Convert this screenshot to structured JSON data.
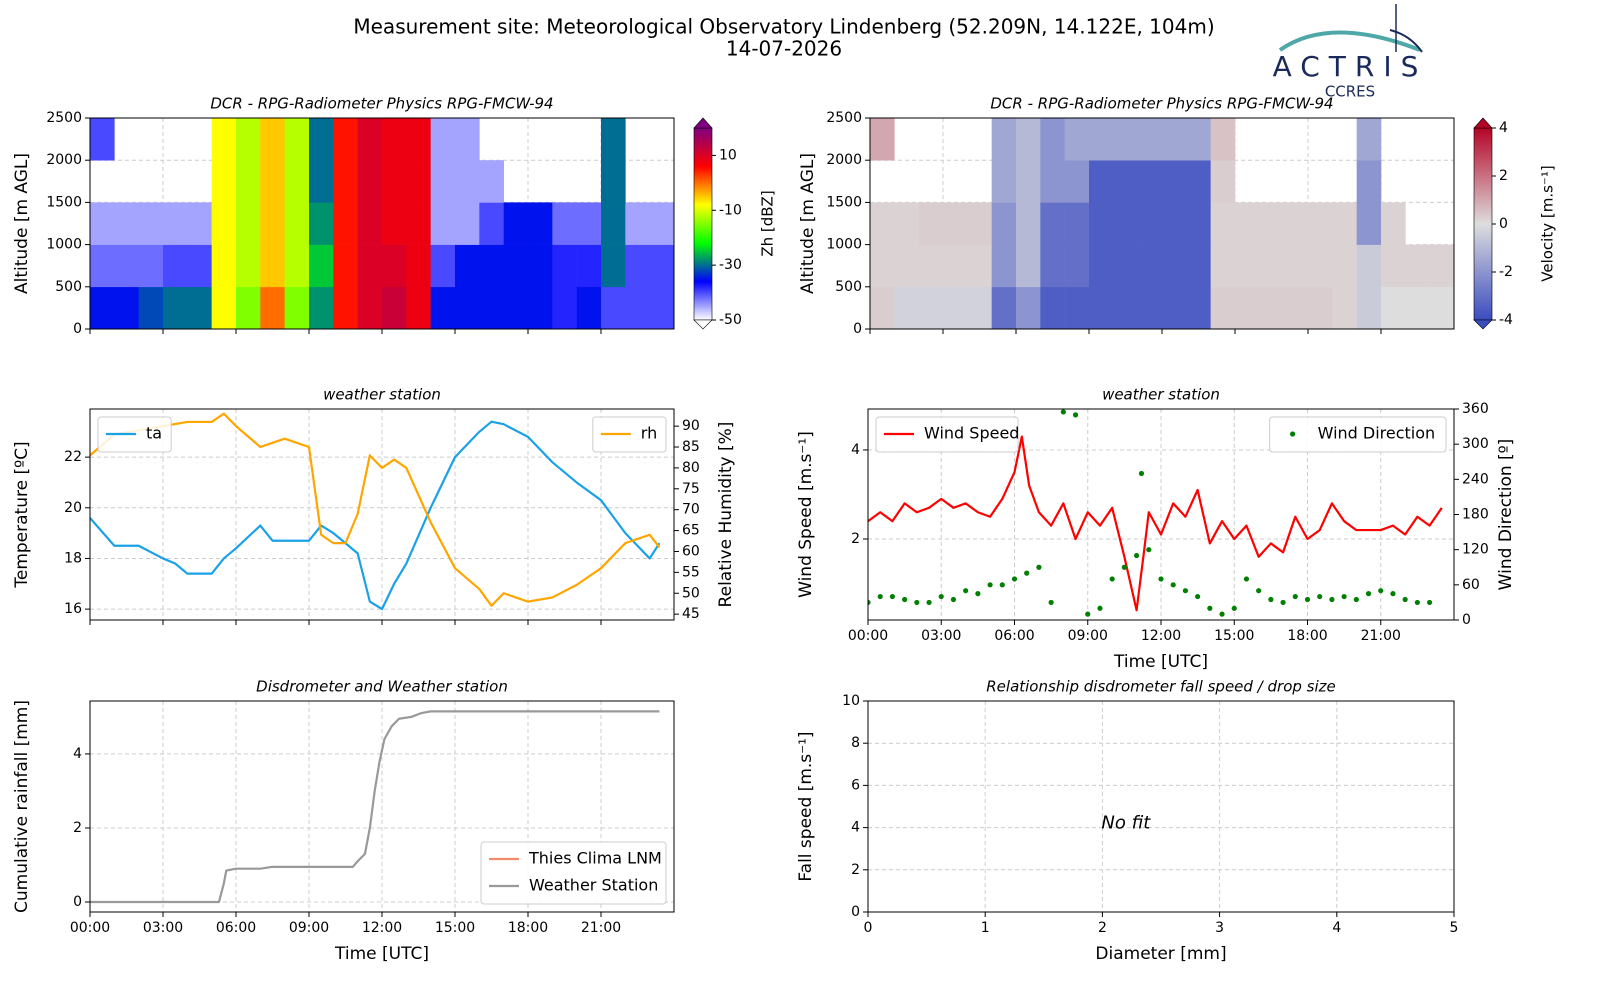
{
  "header": {
    "title": "Measurement site: Meteorological Observatory Lindenberg (52.209N, 14.122E, 104m)",
    "subtitle": "14-07-2026"
  },
  "logo": {
    "name": "ACTRIS",
    "subtitle": "CCRES"
  },
  "chart_data": [
    {
      "type": "heatmap",
      "title": "DCR - RPG-Radiometer Physics RPG-FMCW-94",
      "ylabel": "Altitude [m AGL]",
      "xlim": [
        0,
        24
      ],
      "xticks": [
        0,
        3,
        6,
        9,
        12,
        15,
        18,
        21
      ],
      "show_xtick_labels": false,
      "ylim": [
        0,
        2500
      ],
      "yticks": [
        0,
        500,
        1000,
        1500,
        2000,
        2500
      ],
      "grid": true,
      "x_bins": [
        0,
        1,
        2,
        3,
        4,
        5,
        6,
        7,
        8,
        9,
        10,
        11,
        12,
        13,
        14,
        15,
        16,
        17,
        18,
        19,
        20,
        21,
        22,
        23,
        24
      ],
      "y_bins": [
        0,
        500,
        1000,
        1500,
        2000,
        2500
      ],
      "values": [
        [
          -35,
          -42,
          -45,
          null,
          -40
        ],
        [
          -35,
          -42,
          -45,
          null,
          null
        ],
        [
          -32,
          -42,
          -45,
          null,
          null
        ],
        [
          -30,
          -40,
          -45,
          null,
          null
        ],
        [
          -30,
          -40,
          -45,
          null,
          null
        ],
        [
          -8,
          -8,
          -8,
          -8,
          -8
        ],
        [
          -15,
          -12,
          -12,
          -12,
          -12
        ],
        [
          0,
          -5,
          -5,
          -5,
          -5
        ],
        [
          -15,
          -12,
          -12,
          -12,
          -12
        ],
        [
          -28,
          -25,
          -28,
          -30,
          -30
        ],
        [
          5,
          5,
          5,
          5,
          5
        ],
        [
          10,
          10,
          10,
          10,
          10
        ],
        [
          12,
          10,
          8,
          8,
          8
        ],
        [
          8,
          8,
          8,
          8,
          8
        ],
        [
          -35,
          -40,
          -45,
          -45,
          -45
        ],
        [
          -35,
          -35,
          -45,
          -45,
          -45
        ],
        [
          -35,
          -35,
          -40,
          -45,
          null
        ],
        [
          -35,
          -35,
          -35,
          null,
          null
        ],
        [
          -35,
          -35,
          -35,
          null,
          null
        ],
        [
          -38,
          -38,
          -42,
          null,
          null
        ],
        [
          -35,
          -38,
          -42,
          null,
          null
        ],
        [
          -40,
          -30,
          -30,
          -30,
          -30
        ],
        [
          -40,
          -40,
          -45,
          null,
          null
        ],
        [
          -40,
          -40,
          -45,
          null,
          null
        ]
      ],
      "zlim": [
        -50,
        20
      ],
      "zticks": [
        -50,
        -30,
        -10,
        10
      ],
      "colorbar_label": "Zh [dBZ]",
      "colormap": [
        "#ffffff",
        "#0000ff",
        "#00ff00",
        "#ffff00",
        "#ff0000",
        "#800080"
      ]
    },
    {
      "type": "heatmap",
      "title": "DCR - RPG-Radiometer Physics RPG-FMCW-94",
      "ylabel": "Altitude [m AGL]",
      "xlim": [
        0,
        24
      ],
      "xticks": [
        0,
        3,
        6,
        9,
        12,
        15,
        18,
        21
      ],
      "show_xtick_labels": false,
      "ylim": [
        0,
        2500
      ],
      "yticks": [
        0,
        500,
        1000,
        1500,
        2000,
        2500
      ],
      "grid": true,
      "x_bins": [
        0,
        1,
        2,
        3,
        4,
        5,
        6,
        7,
        8,
        9,
        10,
        11,
        12,
        13,
        14,
        15,
        16,
        17,
        18,
        19,
        20,
        21,
        22,
        23,
        24
      ],
      "y_bins": [
        0,
        500,
        1000,
        1500,
        2000,
        2500
      ],
      "values": [
        [
          0.3,
          0.2,
          0.2,
          null,
          1
        ],
        [
          -0.3,
          0.2,
          0.2,
          null,
          null
        ],
        [
          -0.3,
          0.2,
          0.3,
          null,
          null
        ],
        [
          -0.3,
          0.2,
          0.3,
          null,
          null
        ],
        [
          -0.3,
          0.2,
          0.3,
          null,
          null
        ],
        [
          -3,
          -2,
          -2,
          -1.5,
          -1.5
        ],
        [
          -2,
          -1,
          -1,
          -1,
          -1
        ],
        [
          -3.5,
          -3,
          -3,
          -2,
          -2
        ],
        [
          -3.5,
          -3,
          -3,
          -2,
          -1.5
        ],
        [
          -3.5,
          -3.5,
          -3.5,
          -3.5,
          -1.5
        ],
        [
          -3.5,
          -3.5,
          -3.5,
          -3.5,
          -1.5
        ],
        [
          -3.5,
          -3.5,
          -3.5,
          -3.5,
          -1.5
        ],
        [
          -3.5,
          -3.5,
          -3.5,
          -3.5,
          -1.5
        ],
        [
          -3.5,
          -3.5,
          -3.5,
          -3.5,
          -1.5
        ],
        [
          0.3,
          0.2,
          0.2,
          0.3,
          0.5
        ],
        [
          0.3,
          0.2,
          0.2,
          null,
          null
        ],
        [
          0.3,
          0.2,
          0.2,
          null,
          null
        ],
        [
          0.3,
          0.2,
          0.2,
          null,
          null
        ],
        [
          0.3,
          0.2,
          0.2,
          null,
          null
        ],
        [
          0.2,
          0.2,
          0.2,
          null,
          null
        ],
        [
          -0.5,
          -0.5,
          -2,
          -2,
          -1.5
        ],
        [
          0,
          0.2,
          0.2,
          null,
          null
        ],
        [
          0,
          0.2,
          null,
          null,
          null
        ],
        [
          0,
          0.2,
          null,
          null,
          null
        ]
      ],
      "zlim": [
        -4,
        4
      ],
      "zticks": [
        -4,
        -2,
        0,
        2,
        4
      ],
      "colorbar_label": "Velocity [m.s⁻¹]",
      "colormap": [
        "#3b4cc0",
        "#dddddd",
        "#b40426"
      ]
    },
    {
      "type": "line",
      "title": "weather station",
      "ylabel": "Temperature [ºC]",
      "y2label": "Relative Humidity [%]",
      "xlim": [
        0,
        24
      ],
      "xticks": [
        0,
        3,
        6,
        9,
        12,
        15,
        18,
        21
      ],
      "show_xtick_labels": false,
      "ylim": [
        15.57,
        23.9
      ],
      "yticks": [
        16,
        18,
        20,
        22
      ],
      "y2lim": [
        43.6,
        94.1
      ],
      "y2ticks": [
        45,
        50,
        55,
        60,
        65,
        70,
        75,
        80,
        85,
        90
      ],
      "grid": true,
      "series": [
        {
          "name": "ta",
          "color": "#1ba1e6",
          "style": "line",
          "legend": "upper left",
          "x": [
            0,
            1,
            2,
            3,
            3.5,
            4,
            5,
            5.5,
            6,
            7,
            7.5,
            8,
            9,
            9.5,
            10,
            11,
            11.5,
            12,
            12.5,
            13,
            14,
            15,
            16,
            16.5,
            17,
            18,
            19,
            20,
            21,
            22,
            23,
            23.4
          ],
          "values": [
            19.6,
            18.5,
            18.5,
            18.0,
            17.8,
            17.4,
            17.4,
            18.0,
            18.4,
            19.3,
            18.7,
            18.7,
            18.7,
            19.3,
            19.0,
            18.2,
            16.3,
            16.0,
            17.0,
            17.8,
            20.0,
            22.0,
            23.0,
            23.4,
            23.3,
            22.8,
            21.8,
            21.0,
            20.3,
            19.0,
            18.0,
            18.6
          ]
        },
        {
          "name": "rh",
          "color": "#ffa500",
          "style": "line",
          "axis": "y2",
          "legend": "upper right",
          "x": [
            0,
            1,
            2,
            3,
            4,
            5,
            5.5,
            6,
            7,
            7.5,
            8,
            9,
            9.5,
            10,
            10.5,
            11,
            11.5,
            12,
            12.5,
            13,
            14,
            15,
            16,
            16.5,
            17,
            17.5,
            18,
            19,
            20,
            21,
            22,
            23,
            23.4
          ],
          "values": [
            83,
            88,
            89,
            90,
            91,
            91,
            93,
            90,
            85,
            86,
            87,
            85,
            64,
            62,
            62,
            69,
            83,
            80,
            82,
            80,
            67,
            56,
            51,
            47,
            50,
            49,
            48,
            49,
            52,
            56,
            62,
            64,
            61
          ]
        }
      ]
    },
    {
      "type": "line",
      "title": "weather station",
      "ylabel": "Wind Speed [m.s⁻¹]",
      "y2label": "Wind Direction [º]",
      "xlabel": "Time [UTC]",
      "xlim": [
        0,
        24
      ],
      "xticks": [
        {
          "value": 0,
          "label": "00:00"
        },
        {
          "value": 3,
          "label": "03:00"
        },
        {
          "value": 6,
          "label": "06:00"
        },
        {
          "value": 9,
          "label": "09:00"
        },
        {
          "value": 12,
          "label": "12:00"
        },
        {
          "value": 15,
          "label": "15:00"
        },
        {
          "value": 18,
          "label": "18:00"
        },
        {
          "value": 21,
          "label": "21:00"
        }
      ],
      "ylim": [
        0.18,
        4.92
      ],
      "yticks": [
        2,
        4
      ],
      "y2lim": [
        0,
        360
      ],
      "y2ticks": [
        0,
        60,
        120,
        180,
        240,
        300,
        360
      ],
      "grid": true,
      "series": [
        {
          "name": "Wind Speed",
          "color": "#ff0000",
          "style": "line",
          "legend": "upper left",
          "x": [
            0,
            0.5,
            1,
            1.5,
            2,
            2.5,
            3,
            3.5,
            4,
            4.5,
            5,
            5.5,
            6,
            6.3,
            6.6,
            7,
            7.5,
            8,
            8.5,
            9,
            9.5,
            10,
            10.5,
            11,
            11.3,
            11.5,
            12,
            12.5,
            13,
            13.5,
            14,
            14.5,
            15,
            15.5,
            16,
            16.5,
            17,
            17.5,
            18,
            18.5,
            19,
            19.5,
            20,
            20.5,
            21,
            21.5,
            22,
            22.5,
            23,
            23.5
          ],
          "values": [
            2.4,
            2.6,
            2.4,
            2.8,
            2.6,
            2.7,
            2.9,
            2.7,
            2.8,
            2.6,
            2.5,
            2.9,
            3.5,
            4.3,
            3.2,
            2.6,
            2.3,
            2.8,
            2.0,
            2.6,
            2.3,
            2.7,
            1.6,
            0.4,
            1.7,
            2.6,
            2.1,
            2.8,
            2.5,
            3.1,
            1.9,
            2.4,
            2.0,
            2.3,
            1.6,
            1.9,
            1.7,
            2.5,
            2.0,
            2.2,
            2.8,
            2.4,
            2.2,
            2.2,
            2.2,
            2.3,
            2.1,
            2.5,
            2.3,
            2.7
          ]
        },
        {
          "name": "Wind Direction",
          "color": "#008000",
          "style": "points",
          "axis": "y2",
          "legend": "upper right",
          "x": [
            0,
            0.5,
            1,
            1.5,
            2,
            2.5,
            3,
            3.5,
            4,
            4.5,
            5,
            5.5,
            6,
            6.5,
            7,
            7.5,
            8,
            8.5,
            9,
            9.5,
            10,
            10.5,
            11,
            11.2,
            11.5,
            12,
            12.5,
            13,
            13.5,
            14,
            14.5,
            15,
            15.5,
            16,
            16.5,
            17,
            17.5,
            18,
            18.5,
            19,
            19.5,
            20,
            20.5,
            21,
            21.5,
            22,
            22.5,
            23
          ],
          "values": [
            30,
            40,
            40,
            35,
            30,
            30,
            40,
            35,
            50,
            45,
            60,
            60,
            70,
            80,
            90,
            30,
            355,
            350,
            10,
            20,
            70,
            90,
            110,
            250,
            120,
            70,
            60,
            50,
            40,
            20,
            10,
            20,
            70,
            50,
            35,
            30,
            40,
            35,
            40,
            35,
            40,
            35,
            45,
            50,
            45,
            35,
            30,
            30
          ]
        }
      ]
    },
    {
      "type": "line",
      "title": "Disdrometer and Weather station",
      "ylabel": "Cumulative rainfall [mm]",
      "xlabel": "Time [UTC]",
      "xlim": [
        0,
        24
      ],
      "xticks": [
        {
          "value": 0,
          "label": "00:00"
        },
        {
          "value": 3,
          "label": "03:00"
        },
        {
          "value": 6,
          "label": "06:00"
        },
        {
          "value": 9,
          "label": "09:00"
        },
        {
          "value": 12,
          "label": "12:00"
        },
        {
          "value": 15,
          "label": "15:00"
        },
        {
          "value": 18,
          "label": "18:00"
        },
        {
          "value": 21,
          "label": "21:00"
        }
      ],
      "ylim": [
        -0.27,
        5.43
      ],
      "yticks": [
        0,
        2,
        4
      ],
      "grid": true,
      "legend": "lower right",
      "series": [
        {
          "name": "Thies Clima LNM",
          "color": "#f08c6a",
          "style": "line",
          "x": [],
          "values": []
        },
        {
          "name": "Weather Station",
          "color": "#999999",
          "style": "line",
          "x": [
            0,
            5.3,
            5.5,
            5.6,
            6,
            7,
            7.5,
            8,
            10,
            10.8,
            11,
            11.3,
            11.5,
            11.7,
            11.9,
            12.1,
            12.4,
            12.7,
            13.2,
            13.6,
            14,
            16,
            23.4
          ],
          "values": [
            0,
            0,
            0.5,
            0.85,
            0.9,
            0.9,
            0.95,
            0.95,
            0.95,
            0.95,
            1.1,
            1.3,
            2.0,
            3.0,
            3.8,
            4.4,
            4.75,
            4.95,
            5.0,
            5.1,
            5.15,
            5.15,
            5.15
          ]
        }
      ]
    },
    {
      "type": "scatter",
      "title": "Relationship disdrometer fall speed / drop size",
      "ylabel": "Fall speed [m.s⁻¹]",
      "xlabel": "Diameter [mm]",
      "annotation": "No fit",
      "xlim": [
        0,
        5
      ],
      "xticks": [
        0,
        1,
        2,
        3,
        4,
        5
      ],
      "ylim": [
        0,
        10
      ],
      "yticks": [
        0,
        2,
        4,
        6,
        8,
        10
      ],
      "grid": true,
      "series": []
    }
  ]
}
